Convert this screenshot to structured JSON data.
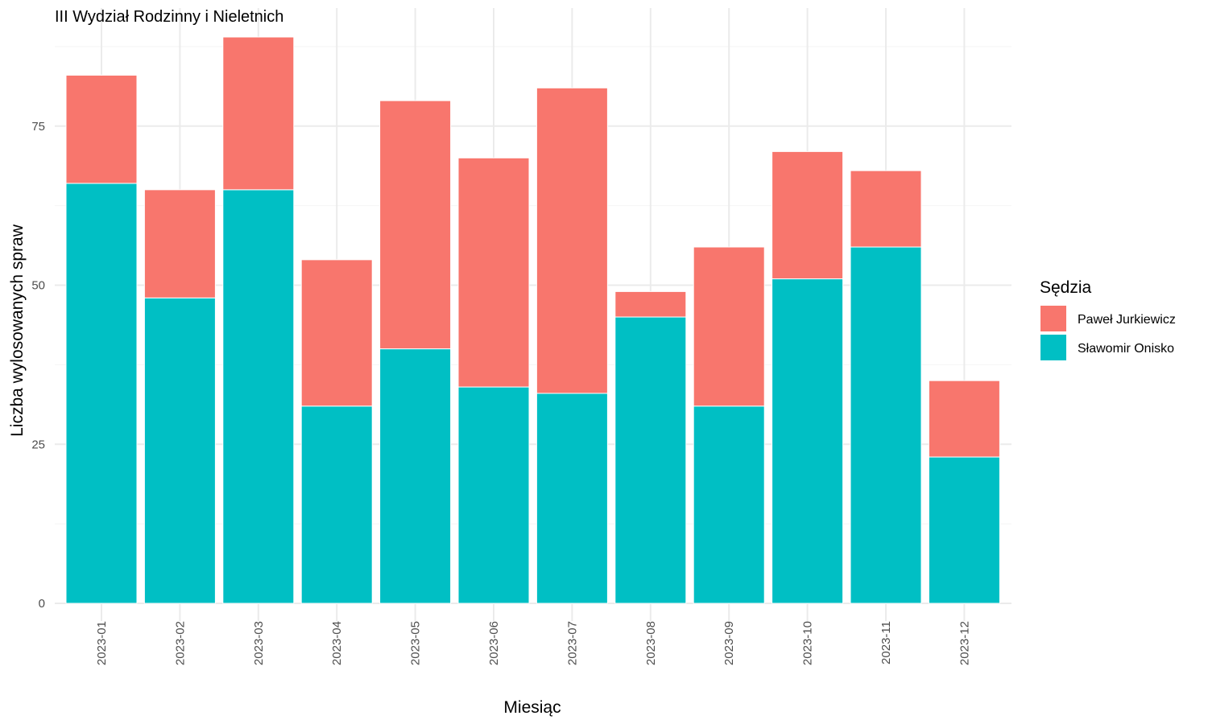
{
  "chart_data": {
    "type": "bar",
    "stacked": true,
    "title": "III Wydział Rodzinny i Nieletnich",
    "xlabel": "Miesiąc",
    "ylabel": "Liczba wylosowanych spraw",
    "categories": [
      "2023-01",
      "2023-02",
      "2023-03",
      "2023-04",
      "2023-05",
      "2023-06",
      "2023-07",
      "2023-08",
      "2023-09",
      "2023-10",
      "2023-11",
      "2023-12"
    ],
    "series": [
      {
        "name": "Sławomir Onisko",
        "color": "#00BFC4",
        "values": [
          66,
          48,
          65,
          31,
          40,
          34,
          33,
          45,
          31,
          51,
          56,
          23
        ]
      },
      {
        "name": "Paweł Jurkiewicz",
        "color": "#F8766D",
        "values": [
          17,
          17,
          24,
          23,
          39,
          36,
          48,
          4,
          25,
          20,
          12,
          12
        ]
      }
    ],
    "ylim": [
      0,
      90
    ],
    "yticks": [
      0,
      25,
      50,
      75
    ],
    "grid": true,
    "legend": {
      "title": "Sędzia",
      "position": "right",
      "order": [
        "Paweł Jurkiewicz",
        "Sławomir Onisko"
      ]
    }
  }
}
